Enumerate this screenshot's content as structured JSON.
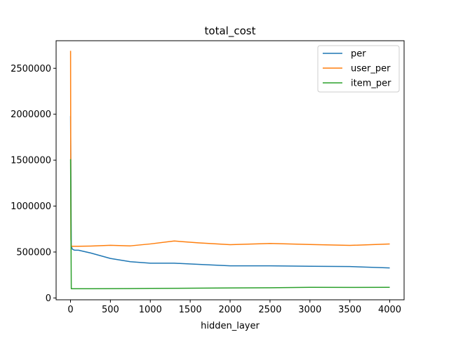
{
  "chart_data": {
    "type": "line",
    "title": "total_cost",
    "xlabel": "hidden_layer",
    "ylabel": "",
    "xlim": [
      -180,
      4180
    ],
    "ylim": [
      -20000,
      2800000
    ],
    "xticks": [
      0,
      500,
      1000,
      1500,
      2000,
      2500,
      3000,
      3500,
      4000
    ],
    "xtick_labels": [
      "0",
      "500",
      "1000",
      "1500",
      "2000",
      "2500",
      "3000",
      "3500",
      "4000"
    ],
    "yticks": [
      0,
      500000,
      1000000,
      1500000,
      2000000,
      2500000
    ],
    "ytick_labels": [
      "0",
      "500000",
      "1000000",
      "1500000",
      "2000000",
      "2500000"
    ],
    "grid": false,
    "legend_position": "top-right",
    "series": [
      {
        "name": "per",
        "color": "#1f77b4",
        "x": [
          1,
          10,
          25,
          50,
          100,
          250,
          500,
          750,
          1000,
          1300,
          1600,
          2000,
          2500,
          3000,
          3500,
          4000
        ],
        "y": [
          1980000,
          560000,
          530000,
          520000,
          520000,
          490000,
          430000,
          395000,
          378000,
          378000,
          366000,
          350000,
          350000,
          345000,
          342000,
          327000
        ]
      },
      {
        "name": "user_per",
        "color": "#ff7f0e",
        "x": [
          1,
          5,
          10,
          25,
          50,
          100,
          250,
          500,
          750,
          1000,
          1300,
          1600,
          2000,
          2500,
          3000,
          3500,
          4000
        ],
        "y": [
          2690000,
          640000,
          563000,
          563000,
          563000,
          563000,
          565000,
          573000,
          567000,
          588000,
          620000,
          600000,
          580000,
          593000,
          582000,
          572000,
          588000
        ]
      },
      {
        "name": "item_per",
        "color": "#2ca02c",
        "x": [
          1,
          10,
          25,
          50,
          100,
          250,
          500,
          750,
          1000,
          1500,
          2000,
          2500,
          3000,
          3500,
          4000
        ],
        "y": [
          1510000,
          100000,
          100000,
          100000,
          100000,
          100000,
          101000,
          102000,
          104000,
          106000,
          109000,
          111000,
          116000,
          115000,
          116000
        ]
      }
    ]
  }
}
